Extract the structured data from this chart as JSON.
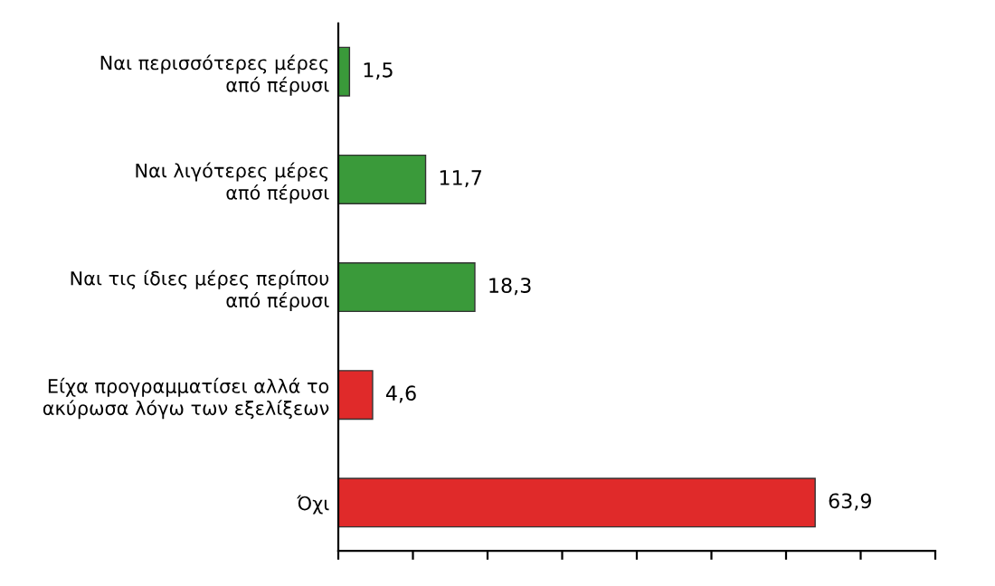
{
  "chart_data": {
    "type": "bar",
    "orientation": "horizontal",
    "categories": [
      "Ναι περισσότερες μέρες\nαπό πέρυσι",
      "Ναι λιγότερες μέρες\nαπό πέρυσι",
      "Ναι τις ίδιες μέρες περίπου\nαπό πέρυσι",
      "Είχα προγραμματίσει αλλά το\nακύρωσα λόγω των εξελίξεων",
      "Όχι"
    ],
    "values": [
      1.5,
      11.7,
      18.3,
      4.6,
      63.9
    ],
    "colors": [
      "#3a9a3a",
      "#3a9a3a",
      "#3a9a3a",
      "#e02a2a",
      "#e02a2a"
    ],
    "value_labels": [
      "1,5",
      "11,7",
      "18,3",
      "4,6",
      "63,9"
    ],
    "xlim": [
      0,
      80
    ],
    "xticks": [
      {
        "value": 0,
        "label": null
      },
      {
        "value": 10,
        "label": null
      },
      {
        "value": 20,
        "label": null
      },
      {
        "value": 30,
        "label": null
      },
      {
        "value": 40,
        "label": null
      },
      {
        "value": 50,
        "label": null
      },
      {
        "value": 60,
        "label": null
      },
      {
        "value": 70,
        "label": null
      },
      {
        "value": 80,
        "label": null
      }
    ],
    "grid": false,
    "legend": false
  }
}
